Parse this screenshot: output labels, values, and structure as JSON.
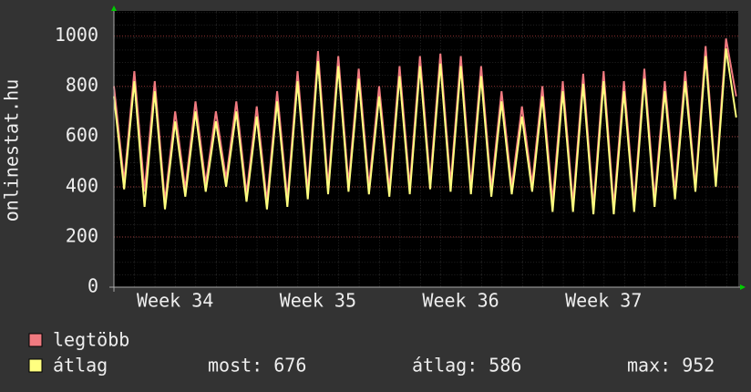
{
  "chart_data": {
    "type": "line",
    "y_label": "onlinestat.hu",
    "x": [
      0,
      0.5,
      1,
      1.5,
      2,
      2.5,
      3,
      3.5,
      4,
      4.5,
      5,
      5.5,
      6,
      6.5,
      7,
      7.5,
      8,
      8.5,
      9,
      9.5,
      10,
      10.5,
      11,
      11.5,
      12,
      12.5,
      13,
      13.5,
      14,
      14.5,
      15,
      15.5,
      16,
      16.5,
      17,
      17.5,
      18,
      18.5,
      19,
      19.5,
      20,
      20.5,
      21,
      21.5,
      22,
      22.5,
      23,
      23.5,
      24,
      24.5,
      25,
      25.5,
      26,
      26.5,
      27,
      27.5,
      28,
      28.5,
      29,
      29.5,
      30,
      30.5
    ],
    "xlim": [
      0,
      30.6
    ],
    "xticks": [
      {
        "value": 3,
        "label": "Week 34"
      },
      {
        "value": 10,
        "label": "Week 35"
      },
      {
        "value": 17,
        "label": "Week 36"
      },
      {
        "value": 24,
        "label": "Week 37"
      }
    ],
    "ylim": [
      0,
      1100
    ],
    "yticks": [
      0,
      200,
      400,
      600,
      800,
      1000
    ],
    "grid": true,
    "series": [
      {
        "name": "legtöbb",
        "color": "#f07a80",
        "values": [
          800,
          420,
          860,
          380,
          820,
          340,
          700,
          390,
          740,
          410,
          700,
          430,
          740,
          370,
          720,
          340,
          780,
          350,
          860,
          380,
          940,
          400,
          920,
          410,
          870,
          400,
          800,
          390,
          880,
          400,
          920,
          420,
          930,
          410,
          920,
          400,
          880,
          390,
          780,
          400,
          720,
          410,
          800,
          340,
          820,
          330,
          850,
          320,
          860,
          320,
          820,
          330,
          870,
          350,
          820,
          380,
          860,
          400,
          960,
          420,
          990,
          760
        ]
      },
      {
        "name": "átlag",
        "color": "#ffff80",
        "values": [
          760,
          390,
          820,
          320,
          780,
          310,
          660,
          360,
          700,
          380,
          660,
          400,
          700,
          340,
          680,
          310,
          740,
          320,
          820,
          350,
          900,
          370,
          880,
          380,
          830,
          370,
          760,
          360,
          840,
          370,
          880,
          390,
          890,
          380,
          880,
          370,
          840,
          360,
          740,
          370,
          680,
          380,
          760,
          300,
          780,
          300,
          810,
          290,
          820,
          290,
          780,
          300,
          830,
          320,
          780,
          350,
          820,
          380,
          920,
          400,
          950,
          676
        ]
      }
    ],
    "stats": [
      "most: 676",
      "átlag: 586",
      "max: 952"
    ]
  }
}
